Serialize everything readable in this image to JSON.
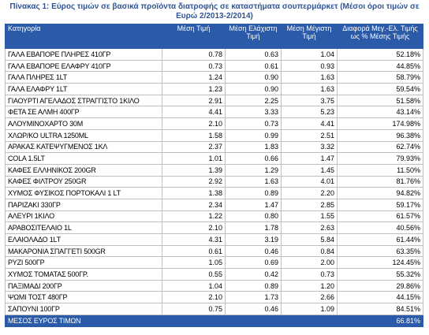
{
  "title": "Πίνακας 1: Εύρος τιμών σε βασικά προϊόντα διατροφής σε καταστήματα σουπερμάρκετ (Μέσοι όροι τιμών σε Ευρώ 2/2013-2/2014)",
  "table": {
    "headers": [
      "Κατηγορία",
      "Μέση Τιμή",
      "Μέση Ελάχιστη Τιμή",
      "Μέση Μέγιστη Τιμή",
      "Διαφορά Μεγ.-Ελ. Τιμής ως % Μέσης Τιμής"
    ],
    "rows": [
      [
        "ΓΑΛΑ ΕΒΑΠΟΡΕ ΠΛΗΡΕΣ 410ΓΡ",
        "0.78",
        "0.63",
        "1.04",
        "52.18%"
      ],
      [
        "ΓΑΛΑ ΕΒΑΠΟΡΕ ΕΛΑΦΡΥ 410ΓΡ",
        "0.73",
        "0.61",
        "0.93",
        "44.85%"
      ],
      [
        "ΓΑΛΑ ΠΛΗΡΕΣ 1LT",
        "1.24",
        "0.90",
        "1.63",
        "58.79%"
      ],
      [
        "ΓΑΛΑ ΕΛΑΦΡΥ 1LT",
        "1.23",
        "0.90",
        "1.63",
        "59.54%"
      ],
      [
        "ΓΙΑΟΥΡΤΙ ΑΓΕΛΑΔΟΣ ΣΤΡΑΓΓΙΣΤΟ 1ΚΙΛΟ",
        "2.91",
        "2.25",
        "3.75",
        "51.58%"
      ],
      [
        "ΦΕΤΑ ΣΕ ΑΛΜΗ 400ΓΡ",
        "4.41",
        "3.33",
        "5.23",
        "43.14%"
      ],
      [
        "ΑΛΟΥΜΙΝΟΧΑΡΤΟ 30Μ",
        "2.10",
        "0.73",
        "4.41",
        "174.98%"
      ],
      [
        "ΧΛΩΡ/ΚΟ ULTRA 1250ML",
        "1.58",
        "0.99",
        "2.51",
        "96.38%"
      ],
      [
        "ΑΡΑΚΑΣ ΚΑΤΕΨΥΓΜΕΝΟΣ 1ΚΛ",
        "2.37",
        "1.83",
        "3.32",
        "62.74%"
      ],
      [
        "COLA 1.5LT",
        "1.01",
        "0.66",
        "1.47",
        "79.93%"
      ],
      [
        "ΚΑΦΕΣ ΕΛΛΗΝΙΚΟΣ 200GR",
        "1.39",
        "1.29",
        "1.45",
        "11.50%"
      ],
      [
        "ΚΑΦΕΣ ΦΙΛΤΡΟΥ 250GR",
        "2.92",
        "1.63",
        "4.01",
        "81.76%"
      ],
      [
        "ΧΥΜΟΣ ΦΥΣΙΚΟΣ ΠΟΡΤΟΚΑΛΙ 1 LT",
        "1.38",
        "0.89",
        "2.20",
        "94.82%"
      ],
      [
        "ΠΑΡΙΖΑΚΙ 330ΓΡ",
        "2.34",
        "1.47",
        "2.85",
        "59.17%"
      ],
      [
        "ΑΛΕΥΡΙ 1ΚΙΛΟ",
        "1.22",
        "0.80",
        "1.55",
        "61.57%"
      ],
      [
        "ΑΡΑΒΟΣΙΤΕΛΑΙΟ 1L",
        "2.10",
        "1.78",
        "2.63",
        "40.56%"
      ],
      [
        "ΕΛΑΙΟΛΑΔΟ 1LT",
        "4.31",
        "3.19",
        "5.84",
        "61.44%"
      ],
      [
        "ΜΑΚΑΡΟΝΙΑ ΣΠΑΓΓΕΤΙ 500GR",
        "0.61",
        "0.46",
        "0.84",
        "63.35%"
      ],
      [
        "ΡΥΖΙ 500ΓΡ",
        "1.05",
        "0.69",
        "2.00",
        "124.45%"
      ],
      [
        "ΧΥΜΟΣ ΤΟΜΑΤΑΣ 500ΓΡ.",
        "0.55",
        "0.42",
        "0.73",
        "55.32%"
      ],
      [
        "ΠΑΞΙΜΑΔΙ 200ΓΡ",
        "1.04",
        "0.89",
        "1.20",
        "29.86%"
      ],
      [
        "ΨΩΜΙ ΤΟΣΤ 480ΓΡ",
        "2.10",
        "1.73",
        "2.66",
        "44.15%"
      ],
      [
        "ΣΑΠΟΥΝΙ 100ΓΡ",
        "0.75",
        "0.46",
        "1.09",
        "84.51%"
      ]
    ],
    "footer": {
      "label": "ΜΕΣΟΣ ΕΥΡΟΣ ΤΙΜΩΝ",
      "value": "66.81%"
    }
  }
}
